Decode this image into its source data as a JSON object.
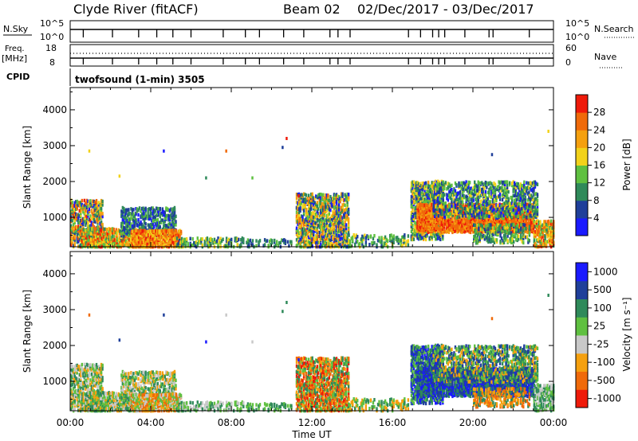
{
  "header": {
    "station": "Clyde River (fitACF)",
    "beam": "Beam 02",
    "date_range": "02/Dec/2017 - 03/Dec/2017"
  },
  "params": {
    "nsky_label": "N.Sky",
    "nsearch_label": "N.Search",
    "freq_label": "Freq.",
    "freq_unit": "[MHz]",
    "nave_label": "Nave",
    "cpid_label": "CPID",
    "cpid_text": "twofsound (1-min) 3505",
    "nsky_ticks": [
      "10^5",
      "10^0"
    ],
    "nsearch_ticks": [
      "10^5",
      "10^0"
    ],
    "freq_ticks": [
      "18",
      "8"
    ],
    "nave_ticks": [
      "60",
      "0"
    ]
  },
  "colors": {
    "power": [
      "#1a1aff",
      "#1f3f9a",
      "#2f8a5a",
      "#5fc040",
      "#f2d21a",
      "#f5a00f",
      "#f06a0a",
      "#ef1a0a"
    ],
    "velocity": [
      "#ef1a0a",
      "#f06a0a",
      "#f5a00f",
      "#c8c8c8",
      "#5fc040",
      "#2f8a5a",
      "#1f3f9a",
      "#1a1aff"
    ]
  },
  "chart_data": [
    {
      "type": "heatmap",
      "name": "power",
      "ylabel": "Slant Range [km]",
      "ylim": [
        180,
        4620
      ],
      "yticks": [
        1000,
        2000,
        3000,
        4000
      ],
      "xlim_hours": [
        0,
        24
      ],
      "colorbar_label": "Power [dB]",
      "colorbar_ticks": [
        "4",
        "8",
        "12",
        "16",
        "20",
        "24",
        "28"
      ],
      "colorbar_range": [
        0,
        32
      ]
    },
    {
      "type": "heatmap",
      "name": "velocity",
      "ylabel": "Slant Range [km]",
      "ylim": [
        180,
        4620
      ],
      "yticks": [
        1000,
        2000,
        3000,
        4000
      ],
      "xlim_hours": [
        0,
        24
      ],
      "colorbar_label": "Velocity [m s⁻¹]",
      "colorbar_ticks": [
        "1000",
        "500",
        "100",
        "25",
        "-25",
        "-100",
        "-500",
        "-1000"
      ]
    }
  ],
  "xaxis": {
    "label": "Time UT",
    "ticks": [
      "00:00",
      "04:00",
      "08:00",
      "12:00",
      "16:00",
      "20:00",
      "00:00"
    ],
    "tick_hours": [
      0,
      4,
      8,
      12,
      16,
      20,
      24
    ]
  }
}
